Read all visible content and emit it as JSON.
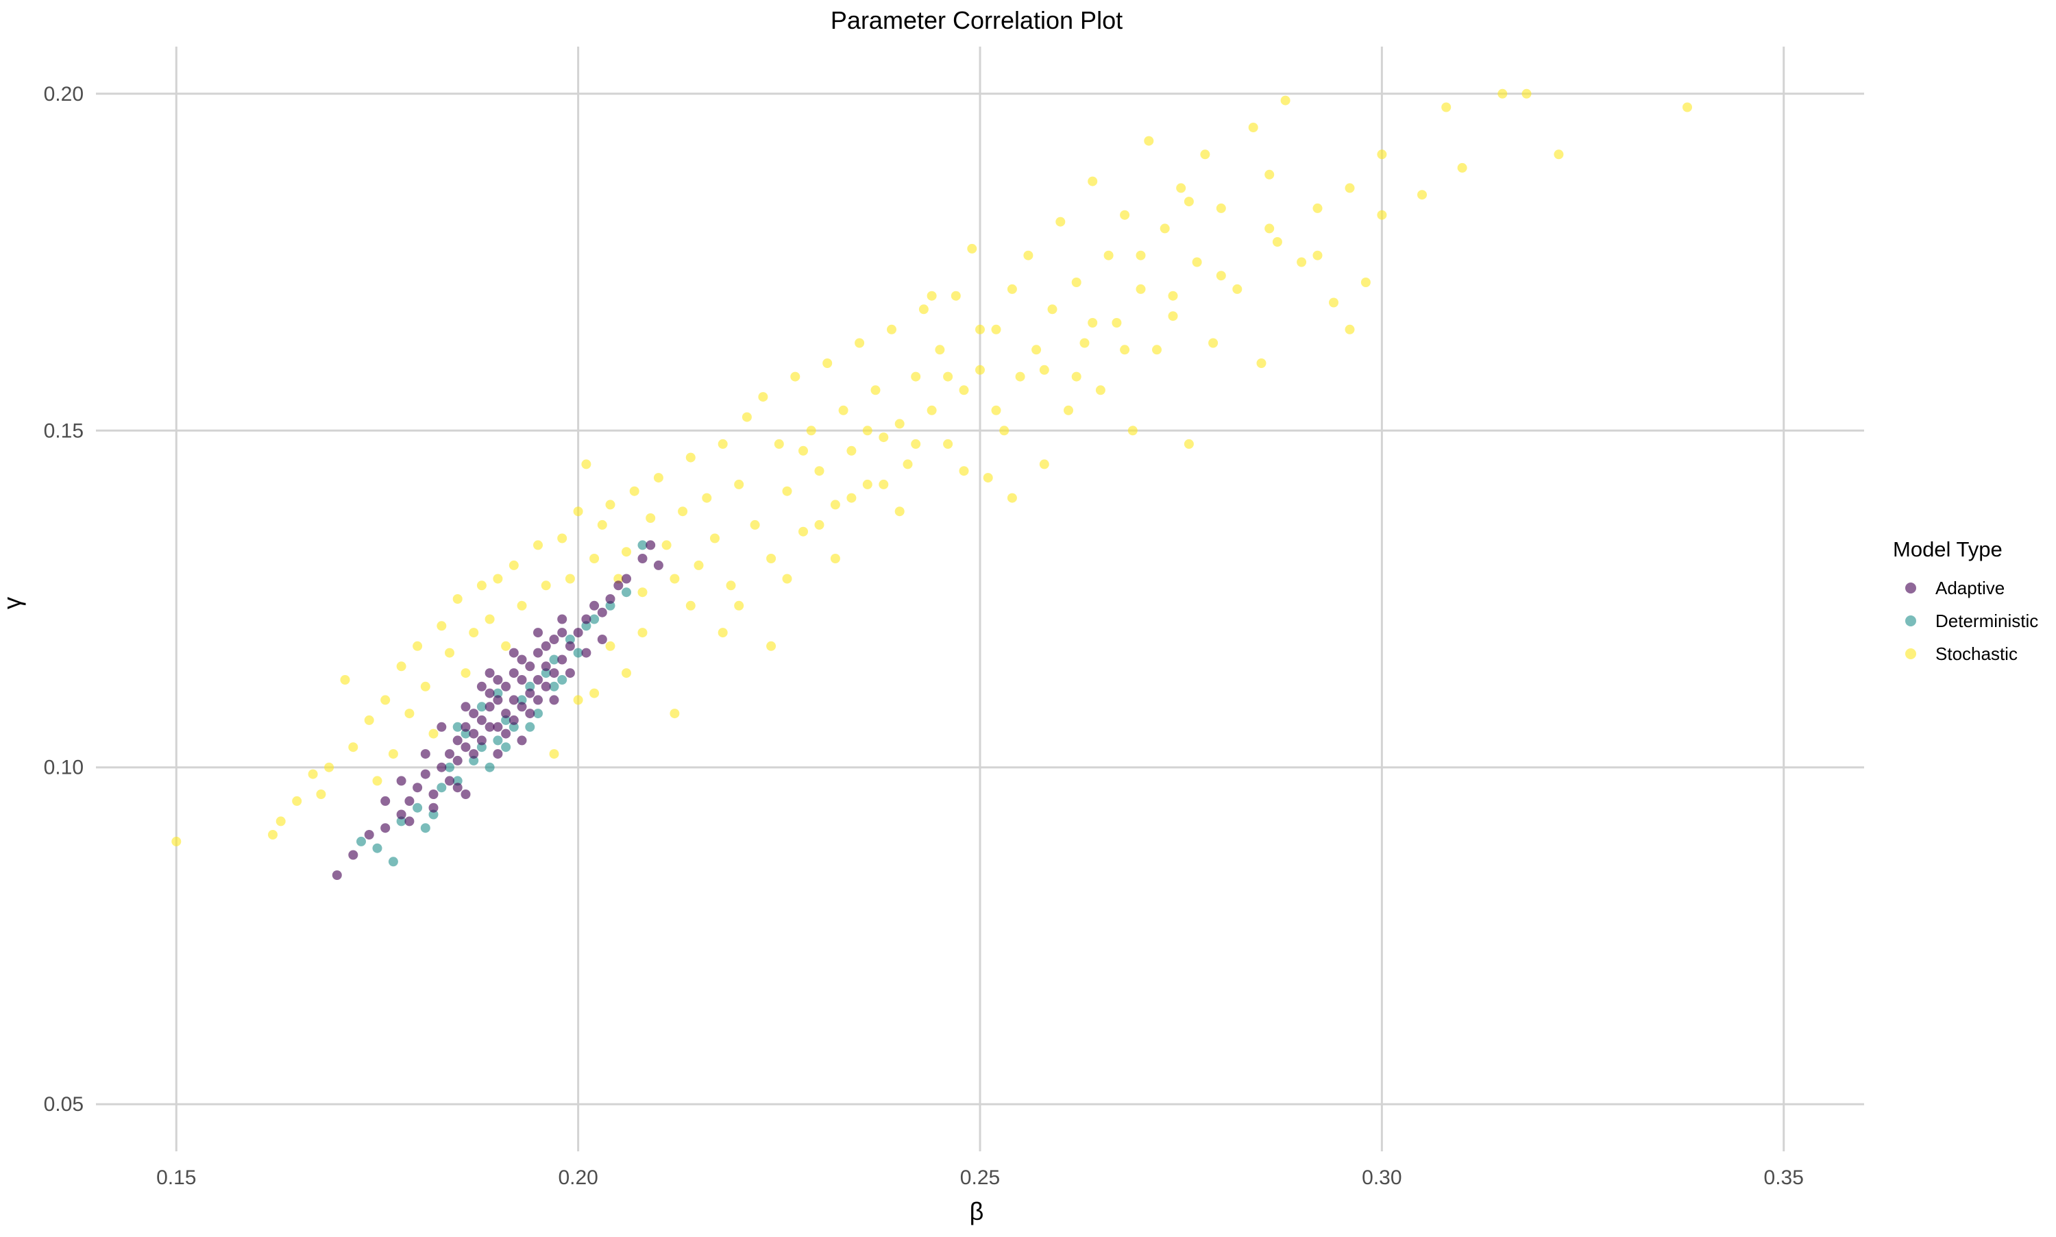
{
  "chart_data": {
    "type": "scatter",
    "title": "Parameter Correlation Plot",
    "xlabel": "β",
    "ylabel": "γ",
    "xlim": [
      0.14,
      0.36
    ],
    "ylim": [
      0.043,
      0.207
    ],
    "x_ticks": [
      0.15,
      0.2,
      0.25,
      0.3,
      0.35
    ],
    "x_tick_labels": [
      "0.15",
      "0.20",
      "0.25",
      "0.30",
      "0.35"
    ],
    "y_ticks": [
      0.05,
      0.1,
      0.15,
      0.2
    ],
    "y_tick_labels": [
      "0.05",
      "0.10",
      "0.15",
      "0.20"
    ],
    "grid": true,
    "legend": {
      "title": "Model Type",
      "placement": "right",
      "entries": [
        "Adaptive",
        "Deterministic",
        "Stochastic"
      ]
    },
    "series": [
      {
        "name": "Adaptive",
        "color": "#440154",
        "opacity": 0.6,
        "points": [
          [
            0.17,
            0.084
          ],
          [
            0.172,
            0.087
          ],
          [
            0.174,
            0.09
          ],
          [
            0.176,
            0.091
          ],
          [
            0.178,
            0.093
          ],
          [
            0.179,
            0.095
          ],
          [
            0.18,
            0.097
          ],
          [
            0.181,
            0.099
          ],
          [
            0.182,
            0.096
          ],
          [
            0.183,
            0.1
          ],
          [
            0.184,
            0.102
          ],
          [
            0.185,
            0.101
          ],
          [
            0.185,
            0.104
          ],
          [
            0.186,
            0.103
          ],
          [
            0.186,
            0.106
          ],
          [
            0.187,
            0.105
          ],
          [
            0.187,
            0.108
          ],
          [
            0.188,
            0.104
          ],
          [
            0.188,
            0.107
          ],
          [
            0.189,
            0.109
          ],
          [
            0.189,
            0.111
          ],
          [
            0.19,
            0.106
          ],
          [
            0.19,
            0.11
          ],
          [
            0.19,
            0.113
          ],
          [
            0.191,
            0.108
          ],
          [
            0.191,
            0.112
          ],
          [
            0.192,
            0.11
          ],
          [
            0.192,
            0.114
          ],
          [
            0.193,
            0.109
          ],
          [
            0.193,
            0.113
          ],
          [
            0.193,
            0.116
          ],
          [
            0.194,
            0.111
          ],
          [
            0.194,
            0.115
          ],
          [
            0.195,
            0.113
          ],
          [
            0.195,
            0.117
          ],
          [
            0.196,
            0.115
          ],
          [
            0.196,
            0.118
          ],
          [
            0.197,
            0.114
          ],
          [
            0.197,
            0.119
          ],
          [
            0.198,
            0.116
          ],
          [
            0.198,
            0.12
          ],
          [
            0.199,
            0.118
          ],
          [
            0.2,
            0.12
          ],
          [
            0.201,
            0.122
          ],
          [
            0.202,
            0.124
          ],
          [
            0.203,
            0.123
          ],
          [
            0.204,
            0.125
          ],
          [
            0.205,
            0.127
          ],
          [
            0.206,
            0.128
          ],
          [
            0.208,
            0.131
          ],
          [
            0.209,
            0.133
          ],
          [
            0.21,
            0.13
          ],
          [
            0.184,
            0.098
          ],
          [
            0.187,
            0.102
          ],
          [
            0.189,
            0.106
          ],
          [
            0.191,
            0.105
          ],
          [
            0.192,
            0.107
          ],
          [
            0.194,
            0.108
          ],
          [
            0.195,
            0.11
          ],
          [
            0.196,
            0.112
          ],
          [
            0.188,
            0.112
          ],
          [
            0.186,
            0.109
          ],
          [
            0.183,
            0.106
          ],
          [
            0.181,
            0.102
          ],
          [
            0.178,
            0.098
          ],
          [
            0.176,
            0.095
          ],
          [
            0.179,
            0.092
          ],
          [
            0.182,
            0.094
          ],
          [
            0.185,
            0.097
          ],
          [
            0.19,
            0.102
          ],
          [
            0.193,
            0.104
          ],
          [
            0.197,
            0.11
          ],
          [
            0.199,
            0.114
          ],
          [
            0.201,
            0.117
          ],
          [
            0.198,
            0.122
          ],
          [
            0.195,
            0.12
          ],
          [
            0.192,
            0.117
          ],
          [
            0.189,
            0.114
          ],
          [
            0.203,
            0.119
          ],
          [
            0.186,
            0.096
          ]
        ]
      },
      {
        "name": "Deterministic",
        "color": "#21908c",
        "opacity": 0.6,
        "points": [
          [
            0.173,
            0.089
          ],
          [
            0.175,
            0.088
          ],
          [
            0.177,
            0.086
          ],
          [
            0.178,
            0.092
          ],
          [
            0.18,
            0.094
          ],
          [
            0.181,
            0.091
          ],
          [
            0.182,
            0.093
          ],
          [
            0.183,
            0.097
          ],
          [
            0.184,
            0.1
          ],
          [
            0.185,
            0.098
          ],
          [
            0.186,
            0.105
          ],
          [
            0.187,
            0.101
          ],
          [
            0.188,
            0.103
          ],
          [
            0.189,
            0.1
          ],
          [
            0.19,
            0.104
          ],
          [
            0.191,
            0.107
          ],
          [
            0.192,
            0.106
          ],
          [
            0.193,
            0.11
          ],
          [
            0.194,
            0.112
          ],
          [
            0.195,
            0.108
          ],
          [
            0.196,
            0.114
          ],
          [
            0.197,
            0.116
          ],
          [
            0.198,
            0.113
          ],
          [
            0.199,
            0.119
          ],
          [
            0.2,
            0.117
          ],
          [
            0.201,
            0.121
          ],
          [
            0.202,
            0.122
          ],
          [
            0.204,
            0.124
          ],
          [
            0.206,
            0.126
          ],
          [
            0.208,
            0.133
          ],
          [
            0.188,
            0.109
          ],
          [
            0.191,
            0.103
          ],
          [
            0.194,
            0.106
          ],
          [
            0.185,
            0.106
          ],
          [
            0.19,
            0.111
          ],
          [
            0.197,
            0.112
          ]
        ]
      },
      {
        "name": "Stochastic",
        "color": "#fde725",
        "opacity": 0.6,
        "points": [
          [
            0.15,
            0.089
          ],
          [
            0.162,
            0.09
          ],
          [
            0.163,
            0.092
          ],
          [
            0.165,
            0.095
          ],
          [
            0.167,
            0.099
          ],
          [
            0.168,
            0.096
          ],
          [
            0.169,
            0.1
          ],
          [
            0.171,
            0.113
          ],
          [
            0.172,
            0.103
          ],
          [
            0.174,
            0.107
          ],
          [
            0.175,
            0.098
          ],
          [
            0.176,
            0.11
          ],
          [
            0.177,
            0.102
          ],
          [
            0.178,
            0.115
          ],
          [
            0.179,
            0.108
          ],
          [
            0.18,
            0.118
          ],
          [
            0.181,
            0.112
          ],
          [
            0.182,
            0.105
          ],
          [
            0.183,
            0.121
          ],
          [
            0.184,
            0.117
          ],
          [
            0.185,
            0.125
          ],
          [
            0.186,
            0.114
          ],
          [
            0.187,
            0.12
          ],
          [
            0.188,
            0.127
          ],
          [
            0.189,
            0.122
          ],
          [
            0.19,
            0.128
          ],
          [
            0.191,
            0.118
          ],
          [
            0.192,
            0.13
          ],
          [
            0.193,
            0.124
          ],
          [
            0.195,
            0.133
          ],
          [
            0.196,
            0.127
          ],
          [
            0.197,
            0.102
          ],
          [
            0.198,
            0.134
          ],
          [
            0.199,
            0.128
          ],
          [
            0.2,
            0.138
          ],
          [
            0.201,
            0.145
          ],
          [
            0.202,
            0.131
          ],
          [
            0.203,
            0.136
          ],
          [
            0.204,
            0.139
          ],
          [
            0.205,
            0.128
          ],
          [
            0.206,
            0.132
          ],
          [
            0.207,
            0.141
          ],
          [
            0.208,
            0.126
          ],
          [
            0.209,
            0.137
          ],
          [
            0.21,
            0.143
          ],
          [
            0.211,
            0.133
          ],
          [
            0.212,
            0.108
          ],
          [
            0.213,
            0.138
          ],
          [
            0.214,
            0.146
          ],
          [
            0.215,
            0.13
          ],
          [
            0.216,
            0.14
          ],
          [
            0.217,
            0.134
          ],
          [
            0.218,
            0.148
          ],
          [
            0.219,
            0.127
          ],
          [
            0.22,
            0.142
          ],
          [
            0.221,
            0.152
          ],
          [
            0.222,
            0.136
          ],
          [
            0.223,
            0.155
          ],
          [
            0.224,
            0.131
          ],
          [
            0.225,
            0.148
          ],
          [
            0.226,
            0.141
          ],
          [
            0.227,
            0.158
          ],
          [
            0.228,
            0.135
          ],
          [
            0.229,
            0.15
          ],
          [
            0.23,
            0.144
          ],
          [
            0.231,
            0.16
          ],
          [
            0.232,
            0.139
          ],
          [
            0.233,
            0.153
          ],
          [
            0.234,
            0.147
          ],
          [
            0.235,
            0.163
          ],
          [
            0.236,
            0.142
          ],
          [
            0.237,
            0.156
          ],
          [
            0.238,
            0.149
          ],
          [
            0.239,
            0.165
          ],
          [
            0.24,
            0.151
          ],
          [
            0.241,
            0.145
          ],
          [
            0.242,
            0.158
          ],
          [
            0.243,
            0.168
          ],
          [
            0.244,
            0.153
          ],
          [
            0.245,
            0.162
          ],
          [
            0.246,
            0.148
          ],
          [
            0.247,
            0.17
          ],
          [
            0.248,
            0.156
          ],
          [
            0.249,
            0.177
          ],
          [
            0.25,
            0.159
          ],
          [
            0.251,
            0.143
          ],
          [
            0.252,
            0.165
          ],
          [
            0.253,
            0.15
          ],
          [
            0.254,
            0.171
          ],
          [
            0.255,
            0.158
          ],
          [
            0.256,
            0.176
          ],
          [
            0.257,
            0.162
          ],
          [
            0.258,
            0.145
          ],
          [
            0.259,
            0.168
          ],
          [
            0.26,
            0.181
          ],
          [
            0.261,
            0.153
          ],
          [
            0.262,
            0.172
          ],
          [
            0.263,
            0.163
          ],
          [
            0.264,
            0.187
          ],
          [
            0.265,
            0.156
          ],
          [
            0.266,
            0.176
          ],
          [
            0.267,
            0.166
          ],
          [
            0.268,
            0.182
          ],
          [
            0.269,
            0.15
          ],
          [
            0.27,
            0.171
          ],
          [
            0.271,
            0.193
          ],
          [
            0.272,
            0.162
          ],
          [
            0.273,
            0.18
          ],
          [
            0.274,
            0.167
          ],
          [
            0.275,
            0.186
          ],
          [
            0.276,
            0.148
          ],
          [
            0.277,
            0.175
          ],
          [
            0.278,
            0.191
          ],
          [
            0.279,
            0.163
          ],
          [
            0.28,
            0.183
          ],
          [
            0.282,
            0.171
          ],
          [
            0.284,
            0.195
          ],
          [
            0.285,
            0.16
          ],
          [
            0.286,
            0.188
          ],
          [
            0.287,
            0.178
          ],
          [
            0.288,
            0.199
          ],
          [
            0.29,
            0.175
          ],
          [
            0.292,
            0.183
          ],
          [
            0.294,
            0.169
          ],
          [
            0.296,
            0.186
          ],
          [
            0.298,
            0.172
          ],
          [
            0.3,
            0.191
          ],
          [
            0.305,
            0.185
          ],
          [
            0.308,
            0.198
          ],
          [
            0.31,
            0.189
          ],
          [
            0.315,
            0.2
          ],
          [
            0.318,
            0.2
          ],
          [
            0.322,
            0.191
          ],
          [
            0.338,
            0.198
          ],
          [
            0.244,
            0.17
          ],
          [
            0.236,
            0.15
          ],
          [
            0.228,
            0.147
          ],
          [
            0.232,
            0.131
          ],
          [
            0.24,
            0.138
          ],
          [
            0.22,
            0.124
          ],
          [
            0.218,
            0.12
          ],
          [
            0.224,
            0.118
          ],
          [
            0.246,
            0.158
          ],
          [
            0.252,
            0.153
          ],
          [
            0.258,
            0.159
          ],
          [
            0.264,
            0.166
          ],
          [
            0.27,
            0.176
          ],
          [
            0.274,
            0.17
          ],
          [
            0.28,
            0.173
          ],
          [
            0.286,
            0.18
          ],
          [
            0.292,
            0.176
          ],
          [
            0.296,
            0.165
          ],
          [
            0.3,
            0.182
          ],
          [
            0.226,
            0.128
          ],
          [
            0.23,
            0.136
          ],
          [
            0.238,
            0.142
          ],
          [
            0.242,
            0.148
          ],
          [
            0.248,
            0.144
          ],
          [
            0.254,
            0.14
          ],
          [
            0.212,
            0.128
          ],
          [
            0.214,
            0.124
          ],
          [
            0.208,
            0.12
          ],
          [
            0.206,
            0.114
          ],
          [
            0.204,
            0.118
          ],
          [
            0.202,
            0.111
          ],
          [
            0.2,
            0.11
          ],
          [
            0.234,
            0.14
          ],
          [
            0.25,
            0.165
          ],
          [
            0.262,
            0.158
          ],
          [
            0.268,
            0.162
          ],
          [
            0.276,
            0.184
          ]
        ]
      }
    ]
  }
}
